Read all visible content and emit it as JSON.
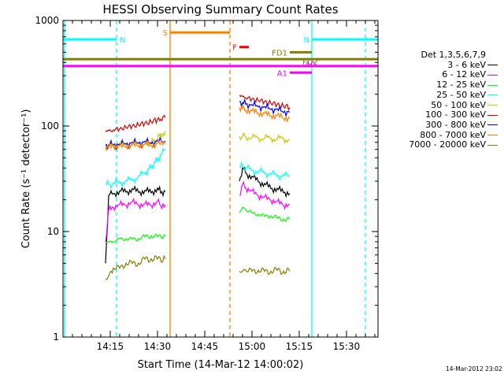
{
  "chart_data": {
    "type": "line",
    "title": "HESSI Observing Summary Count Rates",
    "xlabel": "Start Time (14-Mar-12 14:00:02)",
    "ylabel": "Count Rate (s⁻¹ detector⁻¹)",
    "y_scale": "log",
    "ylim": [
      1,
      1000
    ],
    "xlim_minutes": [
      0,
      100
    ],
    "x_ticks": [
      "14:15",
      "14:30",
      "14:45",
      "15:00",
      "15:15",
      "15:30"
    ],
    "y_ticks": [
      "1",
      "10",
      "100",
      "1000"
    ],
    "grid": false,
    "legend_placement": "right",
    "legend_title": "Det 1,3,5,6,7,9",
    "date_stamp": "14-Mar-2012 23:02",
    "series": [
      {
        "name": "3 - 6 keV",
        "color": "#000000",
        "segments": [
          {
            "x": [
              13.5,
              14.5,
              16,
              18,
              20,
              22,
              24,
              26,
              28,
              30,
              31,
              32.5
            ],
            "y": [
              5,
              22,
              23,
              24,
              24,
              25,
              24,
              24,
              24,
              25,
              24,
              24
            ]
          },
          {
            "x": [
              56,
              57,
              58,
              60,
              62,
              64,
              66,
              68,
              70,
              72
            ],
            "y": [
              30,
              40,
              36,
              33,
              30,
              28,
              26,
              25,
              24,
              23
            ]
          }
        ]
      },
      {
        "name": "6 - 12 keV",
        "color": "#ff00ff",
        "segments": [
          {
            "x": [
              13.5,
              14.5,
              16,
              18,
              20,
              22,
              24,
              26,
              28,
              30,
              31,
              32.5
            ],
            "y": [
              8,
              16,
              17,
              18,
              18,
              19,
              18,
              18,
              18,
              19,
              18,
              18
            ]
          },
          {
            "x": [
              56,
              57,
              58,
              60,
              62,
              64,
              66,
              68,
              70,
              72
            ],
            "y": [
              22,
              28,
              26,
              24,
              22,
              21,
              20,
              19,
              18,
              18
            ]
          }
        ]
      },
      {
        "name": "12 - 25 keV",
        "color": "#00ff00",
        "segments": [
          {
            "x": [
              13.5,
              14.5,
              16,
              18,
              20,
              22,
              24,
              26,
              28,
              30,
              32.5
            ],
            "y": [
              8,
              8,
              8,
              8.5,
              8.5,
              8.5,
              8.5,
              9,
              9,
              9,
              9
            ]
          },
          {
            "x": [
              56,
              57,
              58,
              60,
              62,
              64,
              66,
              68,
              70,
              72
            ],
            "y": [
              15,
              17,
              16,
              15,
              14.5,
              14,
              14,
              13.5,
              13,
              13
            ]
          }
        ]
      },
      {
        "name": "25 - 50 keV",
        "color": "#00ffff",
        "segments": [
          {
            "x": [
              13.5,
              14.5,
              16,
              18,
              20,
              22,
              24,
              26,
              27,
              28,
              29,
              30,
              31,
              32.5
            ],
            "y": [
              28,
              28,
              28.5,
              29,
              30,
              31,
              33,
              36,
              38,
              41,
              44,
              48,
              52,
              60
            ]
          },
          {
            "x": [
              56,
              57,
              58,
              60,
              62,
              64,
              66,
              68,
              70,
              72
            ],
            "y": [
              40,
              42,
              40,
              38,
              37,
              36,
              35,
              34,
              34,
              33
            ]
          }
        ]
      },
      {
        "name": "50 - 100 keV",
        "color": "#c8c800",
        "segments": [
          {
            "x": [
              13.5,
              14.5,
              16,
              18,
              20,
              22,
              24,
              26,
              27,
              28,
              29,
              30,
              31,
              32.5
            ],
            "y": [
              65,
              65,
              66,
              66,
              67,
              67,
              68,
              68,
              69,
              70,
              72,
              76,
              82,
              90
            ]
          },
          {
            "x": [
              56,
              57,
              58,
              60,
              62,
              64,
              66,
              68,
              70,
              72
            ],
            "y": [
              80,
              80,
              79,
              78,
              77,
              77,
              76,
              76,
              75,
              75
            ]
          }
        ]
      },
      {
        "name": "100 - 300 keV",
        "color": "#e00000",
        "segments": [
          {
            "x": [
              13.5,
              14.5,
              16,
              18,
              20,
              22,
              24,
              26,
              28,
              30,
              31,
              32.5
            ],
            "y": [
              90,
              90,
              92,
              94,
              97,
              100,
              103,
              106,
              110,
              114,
              117,
              120
            ]
          },
          {
            "x": [
              56,
              57,
              58,
              60,
              62,
              64,
              66,
              68,
              70,
              72
            ],
            "y": [
              195,
              190,
              185,
              180,
              175,
              170,
              165,
              160,
              155,
              150
            ]
          }
        ]
      },
      {
        "name": "300 - 800 keV",
        "color": "#0000ff",
        "segments": [
          {
            "x": [
              13.5,
              14.5,
              16,
              18,
              20,
              22,
              24,
              26,
              28,
              30,
              32.5
            ],
            "y": [
              66,
              66,
              67,
              67,
              68,
              69,
              70,
              70,
              70,
              71,
              72
            ]
          },
          {
            "x": [
              56,
              57,
              58,
              60,
              62,
              64,
              66,
              68,
              70,
              72
            ],
            "y": [
              170,
              166,
              162,
              158,
              154,
              150,
              146,
              142,
              138,
              135
            ]
          }
        ]
      },
      {
        "name": "800 - 7000 keV",
        "color": "#ff8000",
        "segments": [
          {
            "x": [
              13.5,
              14.5,
              16,
              18,
              20,
              22,
              24,
              26,
              28,
              30,
              32.5
            ],
            "y": [
              63,
              63,
              64,
              64,
              65,
              65,
              66,
              66,
              67,
              67,
              68
            ]
          },
          {
            "x": [
              56,
              57,
              58,
              60,
              62,
              64,
              66,
              68,
              70,
              72
            ],
            "y": [
              150,
              146,
              142,
              138,
              134,
              130,
              127,
              124,
              121,
              118
            ]
          }
        ]
      },
      {
        "name": "7000 - 20000 keV",
        "color": "#808000",
        "segments": [
          {
            "x": [
              13.5,
              14.5,
              16,
              18,
              20,
              22,
              24,
              26,
              28,
              30,
              32.5
            ],
            "y": [
              3.5,
              3.8,
              4.5,
              4.5,
              5,
              5,
              5,
              5.5,
              5.5,
              5.5,
              5.5
            ]
          },
          {
            "x": [
              56,
              57,
              58,
              60,
              62,
              64,
              66,
              68,
              70,
              72
            ],
            "y": [
              4.2,
              4.2,
              4.3,
              4.2,
              4.3,
              4.2,
              4.2,
              4.3,
              4.2,
              4.2
            ]
          }
        ]
      }
    ],
    "annotations": {
      "flag_bars": [
        {
          "label": "N",
          "color": "#00ffff",
          "x": [
            0,
            17
          ],
          "y": 660
        },
        {
          "label": "N",
          "color": "#00ffff",
          "x": [
            79,
            100
          ],
          "y": 660
        },
        {
          "label": "S",
          "color": "#ff8000",
          "x": [
            34,
            53
          ],
          "y": 770
        },
        {
          "label": "F",
          "color": "#ff0000",
          "x": [
            56,
            59
          ],
          "y": 560
        },
        {
          "label": "FD1",
          "color": "#808000",
          "x": [
            72,
            79
          ],
          "y": 500
        },
        {
          "label": "FD2",
          "color": "#808000",
          "x": [
            0,
            100
          ],
          "y": 430
        },
        {
          "label": "A0",
          "color": "#ff00ff",
          "x": [
            0,
            100
          ],
          "y": 370
        },
        {
          "label": "A1",
          "color": "#ff00ff",
          "x": [
            72,
            79
          ],
          "y": 320
        }
      ],
      "vertical_lines": [
        {
          "x": 0.5,
          "color": "#00ffff",
          "style": "solid"
        },
        {
          "x": 17,
          "color": "#00ffff",
          "style": "dashed"
        },
        {
          "x": 34,
          "color": "#ff8000",
          "style": "solid"
        },
        {
          "x": 53,
          "color": "#ff8000",
          "style": "dashed"
        },
        {
          "x": 79,
          "color": "#00ffff",
          "style": "solid"
        },
        {
          "x": 96,
          "color": "#00ffff",
          "style": "dashed"
        }
      ]
    }
  }
}
